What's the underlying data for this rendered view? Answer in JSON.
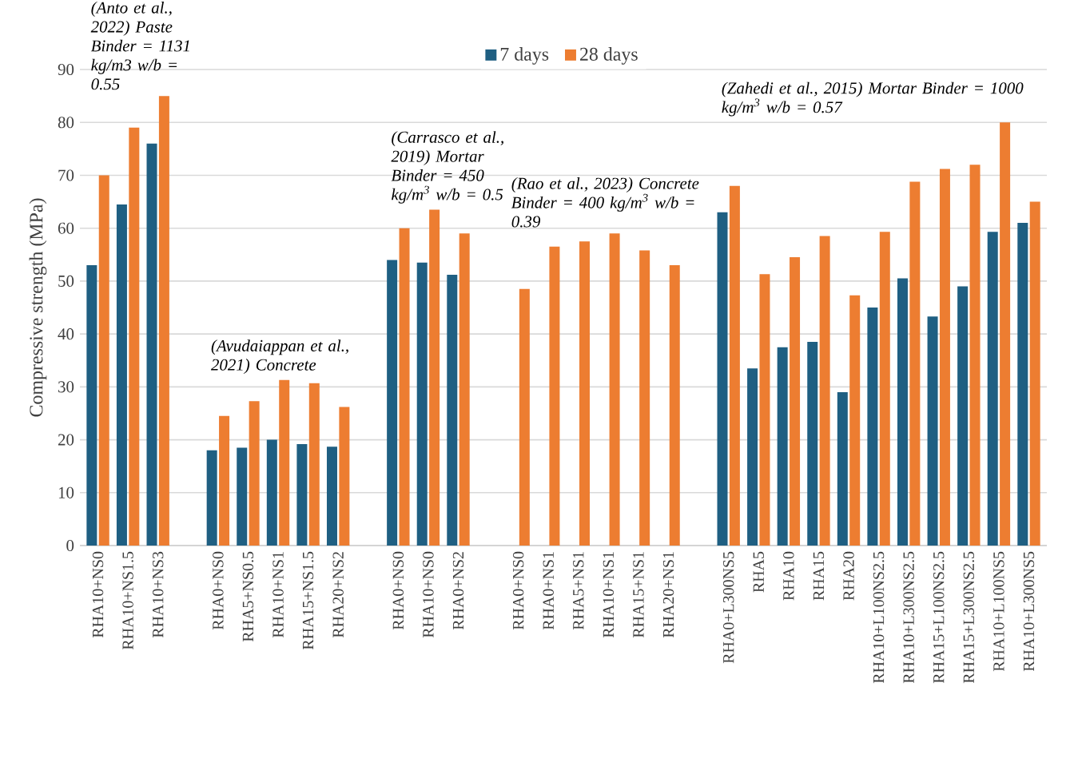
{
  "chart_data": {
    "type": "bar",
    "ylabel": "Compressive strength (MPa)",
    "categories": [
      "RHA10+NS0",
      "RHA10+NS1.5",
      "RHA10+NS3",
      null,
      "RHA0+NS0",
      "RHA5+NS0.5",
      "RHA10+NS1",
      "RHA15+NS1.5",
      "RHA20+NS2",
      null,
      "RHA0+NS0",
      "RHA10+NS0",
      "RHA0+NS2",
      null,
      "RHA0+NS0",
      "RHA0+NS1",
      "RHA5+NS1",
      "RHA10+NS1",
      "RHA15+NS1",
      "RHA20+NS1",
      null,
      "RHA0+L300NS5",
      "RHA5",
      "RHA10",
      "RHA15",
      "RHA20",
      "RHA10+L100NS2.5",
      "RHA10+L300NS2.5",
      "RHA15+L100NS2.5",
      "RHA15+L300NS2.5",
      "RHA10+L100NS5",
      "RHA10+L300NS5"
    ],
    "series": [
      {
        "name": "7 days",
        "color": "#1f5f82",
        "values": [
          53,
          64.5,
          76,
          null,
          18,
          18.5,
          20,
          19.2,
          18.7,
          null,
          54,
          53.5,
          51.2,
          null,
          null,
          null,
          null,
          null,
          null,
          null,
          null,
          63,
          33.5,
          37.5,
          38.5,
          29,
          45,
          50.5,
          43.3,
          49,
          59.3,
          61
        ]
      },
      {
        "name": "28 days",
        "color": "#ed7d31",
        "values": [
          70,
          79,
          85,
          null,
          24.5,
          27.3,
          31.3,
          30.7,
          26.2,
          null,
          60,
          63.5,
          59,
          null,
          48.5,
          56.5,
          57.5,
          59,
          55.8,
          53,
          null,
          68,
          51.3,
          54.5,
          58.5,
          47.3,
          59.3,
          68.8,
          71.2,
          72,
          80,
          65
        ]
      }
    ],
    "ylim": [
      0,
      90
    ],
    "yticks": [
      0,
      10,
      20,
      30,
      40,
      50,
      60,
      70,
      80,
      90
    ],
    "grid": "y",
    "legend": "top",
    "annotations": [
      "(Anto et al., 2022) Paste Binder = 1131 kg/m3 w/b = 0.55",
      "(Avudaiappan et al., 2021) Concrete",
      "(Carrasco et al., 2019) Mortar Binder = 450 kg/m$^{3}$ w/b = 0.5",
      "(Rao et al., 2023) Concrete Binder = 400 kg/m$^{3}$ w/b = 0.39",
      "(Zahedi et al., 2015) Mortar Binder = 1000 kg/m$^{3}$ w/b = 0.57"
    ]
  }
}
